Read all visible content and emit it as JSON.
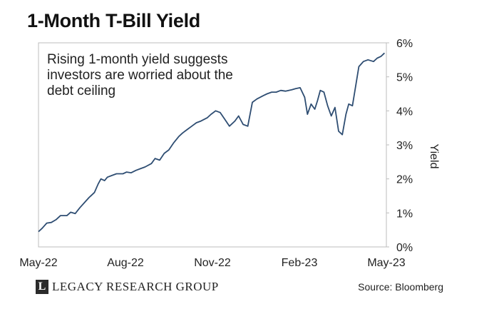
{
  "chart_data": {
    "type": "line",
    "title": "1-Month T-Bill Yield",
    "ylabel": "Yield",
    "xlabel": "",
    "x_tick_labels": [
      "May-22",
      "Aug-22",
      "Nov-22",
      "Feb-23",
      "May-23"
    ],
    "y_tick_labels": [
      "0%",
      "1%",
      "2%",
      "3%",
      "4%",
      "5%",
      "6%"
    ],
    "ylim": [
      0,
      6
    ],
    "xlim": [
      "2022-05-01",
      "2023-05-15"
    ],
    "annotation": "Rising 1-month yield suggests investors are worried about the debt ceiling",
    "legend": "none",
    "grid": false,
    "series": [
      {
        "color": "#2e4d72",
        "points": [
          [
            "2022-05-01",
            0.45
          ],
          [
            "2022-05-05",
            0.55
          ],
          [
            "2022-05-10",
            0.7
          ],
          [
            "2022-05-15",
            0.72
          ],
          [
            "2022-05-20",
            0.8
          ],
          [
            "2022-05-25",
            0.92
          ],
          [
            "2022-06-01",
            0.92
          ],
          [
            "2022-06-05",
            1.02
          ],
          [
            "2022-06-10",
            0.98
          ],
          [
            "2022-06-15",
            1.15
          ],
          [
            "2022-06-20",
            1.3
          ],
          [
            "2022-06-25",
            1.45
          ],
          [
            "2022-07-01",
            1.6
          ],
          [
            "2022-07-05",
            1.85
          ],
          [
            "2022-07-08",
            2.0
          ],
          [
            "2022-07-12",
            1.95
          ],
          [
            "2022-07-15",
            2.05
          ],
          [
            "2022-07-20",
            2.1
          ],
          [
            "2022-07-25",
            2.15
          ],
          [
            "2022-08-01",
            2.15
          ],
          [
            "2022-08-05",
            2.2
          ],
          [
            "2022-08-10",
            2.18
          ],
          [
            "2022-08-15",
            2.25
          ],
          [
            "2022-08-20",
            2.3
          ],
          [
            "2022-08-25",
            2.35
          ],
          [
            "2022-09-01",
            2.45
          ],
          [
            "2022-09-05",
            2.6
          ],
          [
            "2022-09-10",
            2.55
          ],
          [
            "2022-09-15",
            2.75
          ],
          [
            "2022-09-20",
            2.85
          ],
          [
            "2022-09-25",
            3.05
          ],
          [
            "2022-10-01",
            3.25
          ],
          [
            "2022-10-05",
            3.35
          ],
          [
            "2022-10-10",
            3.45
          ],
          [
            "2022-10-15",
            3.55
          ],
          [
            "2022-10-20",
            3.65
          ],
          [
            "2022-10-25",
            3.7
          ],
          [
            "2022-11-01",
            3.8
          ],
          [
            "2022-11-05",
            3.9
          ],
          [
            "2022-11-10",
            4.0
          ],
          [
            "2022-11-15",
            3.95
          ],
          [
            "2022-11-20",
            3.75
          ],
          [
            "2022-11-25",
            3.55
          ],
          [
            "2022-12-01",
            3.7
          ],
          [
            "2022-12-05",
            3.85
          ],
          [
            "2022-12-10",
            3.6
          ],
          [
            "2022-12-15",
            3.55
          ],
          [
            "2022-12-20",
            4.25
          ],
          [
            "2022-12-25",
            4.35
          ],
          [
            "2023-01-01",
            4.45
          ],
          [
            "2023-01-05",
            4.5
          ],
          [
            "2023-01-10",
            4.55
          ],
          [
            "2023-01-15",
            4.55
          ],
          [
            "2023-01-20",
            4.6
          ],
          [
            "2023-01-25",
            4.58
          ],
          [
            "2023-02-01",
            4.62
          ],
          [
            "2023-02-05",
            4.65
          ],
          [
            "2023-02-10",
            4.68
          ],
          [
            "2023-02-15",
            4.4
          ],
          [
            "2023-02-18",
            3.9
          ],
          [
            "2023-02-22",
            4.2
          ],
          [
            "2023-02-26",
            4.05
          ],
          [
            "2023-03-01",
            4.3
          ],
          [
            "2023-03-04",
            4.6
          ],
          [
            "2023-03-08",
            4.55
          ],
          [
            "2023-03-12",
            4.15
          ],
          [
            "2023-03-16",
            3.85
          ],
          [
            "2023-03-20",
            4.1
          ],
          [
            "2023-03-24",
            3.4
          ],
          [
            "2023-03-28",
            3.3
          ],
          [
            "2023-04-01",
            3.9
          ],
          [
            "2023-04-04",
            4.2
          ],
          [
            "2023-04-08",
            4.15
          ],
          [
            "2023-04-12",
            4.8
          ],
          [
            "2023-04-15",
            5.3
          ],
          [
            "2023-04-20",
            5.45
          ],
          [
            "2023-04-25",
            5.5
          ],
          [
            "2023-05-01",
            5.45
          ],
          [
            "2023-05-05",
            5.55
          ],
          [
            "2023-05-09",
            5.6
          ],
          [
            "2023-05-13",
            5.7
          ]
        ]
      }
    ]
  },
  "footer": {
    "brand_mark": "L",
    "brand_name": "LEGACY RESEARCH GROUP",
    "source": "Source: Bloomberg"
  }
}
